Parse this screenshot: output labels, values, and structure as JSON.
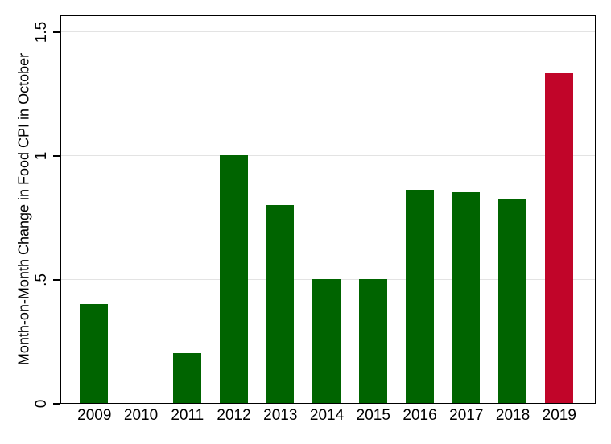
{
  "figure": {
    "background_color": "#ffffff",
    "axis_color": "#000000",
    "gridline_color": "#e3e3e3",
    "text_color": "#000000"
  },
  "chart_data": {
    "type": "bar",
    "title": "",
    "xlabel": "",
    "ylabel": "Month-on-Month Change in Food CPI in October",
    "categories": [
      "2009",
      "2010",
      "2011",
      "2012",
      "2013",
      "2014",
      "2015",
      "2016",
      "2017",
      "2018",
      "2019"
    ],
    "values": [
      0.4,
      0,
      0.2,
      1,
      0.8,
      0.5,
      0.5,
      0.86,
      0.85,
      0.82,
      1.33
    ],
    "bar_colors": [
      "#006400",
      "#006400",
      "#006400",
      "#006400",
      "#006400",
      "#006400",
      "#006400",
      "#006400",
      "#006400",
      "#006400",
      "#c10529"
    ],
    "bar_color_default": "#006400",
    "bar_color_highlight": "#c10529",
    "highlighted_category": "2019",
    "ylim": [
      0,
      1.5
    ],
    "ytick_values": [
      0,
      0.5,
      1,
      1.5
    ],
    "ytick_labels": [
      "0",
      ".5",
      "1",
      "1.5"
    ],
    "grid": true,
    "legend_position": "none"
  }
}
